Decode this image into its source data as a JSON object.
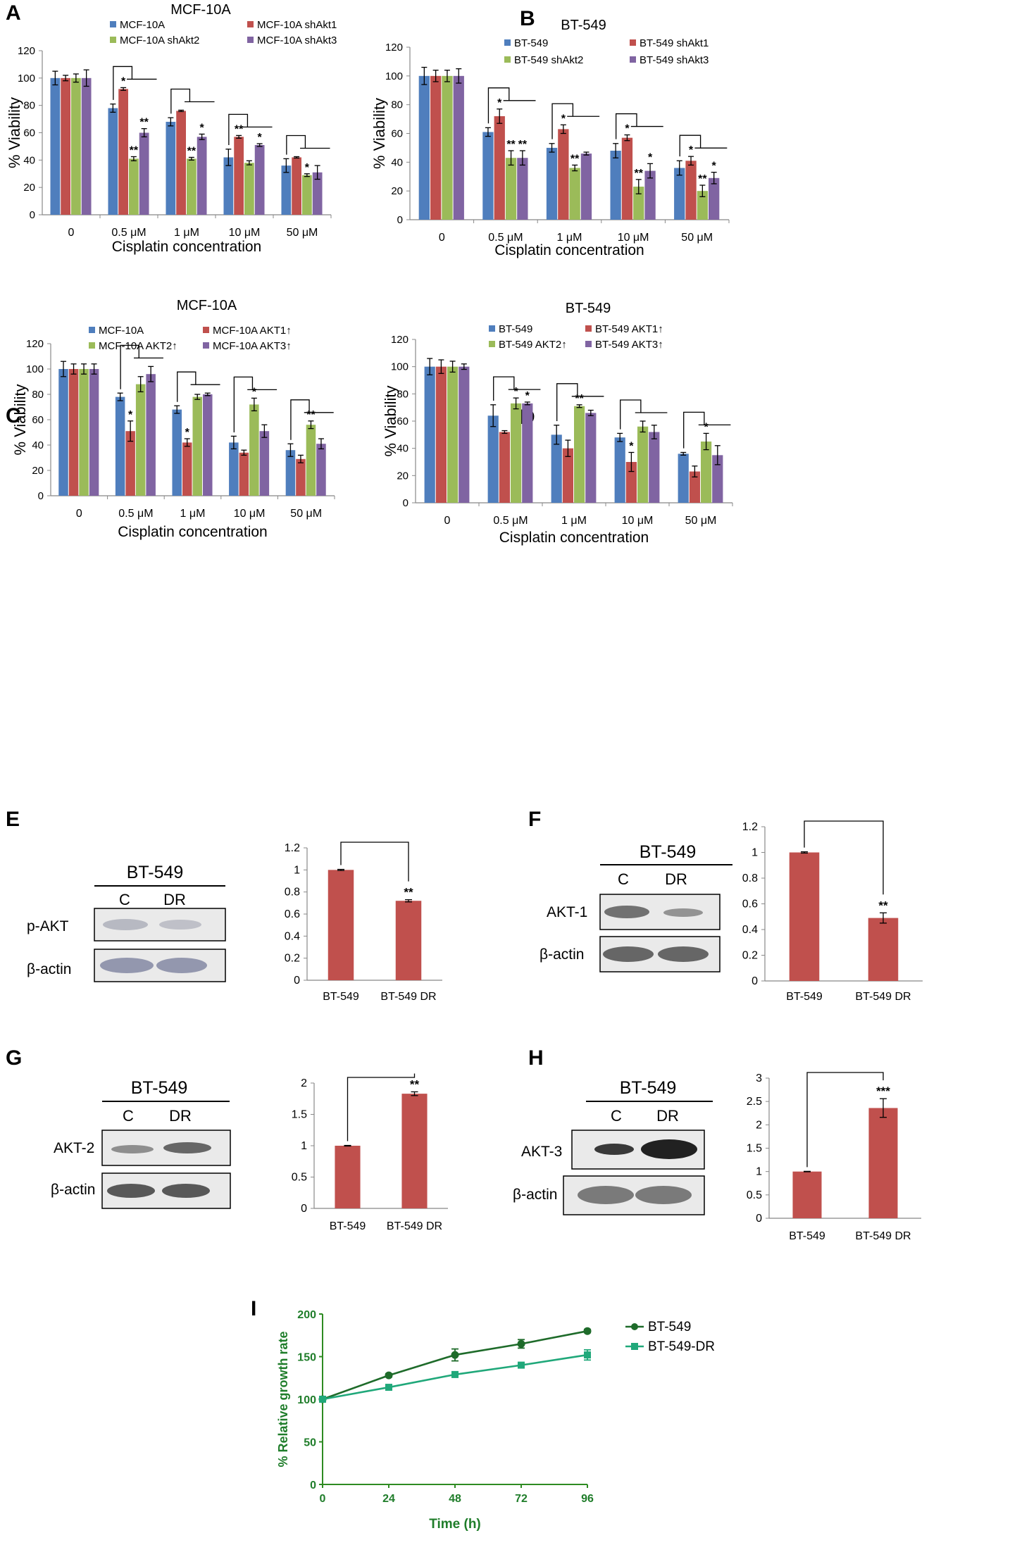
{
  "colors": {
    "blue": "#4f7ebd",
    "red": "#c0504d",
    "green": "#9bbb59",
    "purple": "#8064a2",
    "bt549_line": "#1e6b2a",
    "bt549dr_line": "#20a87a",
    "axis_green": "#2e8b22"
  },
  "panels": [
    {
      "id": "A",
      "letter": "A"
    },
    {
      "id": "B",
      "letter": "B"
    },
    {
      "id": "C",
      "letter": "C"
    },
    {
      "id": "D",
      "letter": "D"
    },
    {
      "id": "E",
      "letter": "E"
    },
    {
      "id": "F",
      "letter": "F"
    },
    {
      "id": "G",
      "letter": "G"
    },
    {
      "id": "H",
      "letter": "H"
    },
    {
      "id": "I",
      "letter": "I"
    }
  ],
  "blots": {
    "E": {
      "title": "BT-549",
      "lanes": [
        "C",
        "DR"
      ],
      "rows": [
        "p-AKT",
        "β-actin"
      ]
    },
    "F": {
      "title": "BT-549",
      "lanes": [
        "C",
        "DR"
      ],
      "rows": [
        "AKT-1",
        "β-actin"
      ]
    },
    "G": {
      "title": "BT-549",
      "lanes": [
        "C",
        "DR"
      ],
      "rows": [
        "AKT-2",
        "β-actin"
      ]
    },
    "H": {
      "title": "BT-549",
      "lanes": [
        "C",
        "DR"
      ],
      "rows": [
        "AKT-3",
        "β-actin"
      ]
    }
  },
  "chart_data": [
    {
      "panel": "A",
      "type": "bar",
      "title": "MCF-10A",
      "categories": [
        "0",
        "0.5 μM",
        "1 μM",
        "10 μM",
        "50 μM"
      ],
      "xlabel": "Cisplatin concentration",
      "ylabel": "% Viability",
      "ylim": [
        0,
        120
      ],
      "yticks": [
        0,
        20,
        40,
        60,
        80,
        100,
        120
      ],
      "legend": "top",
      "series": [
        {
          "name": "MCF-10A",
          "color": "#4f7ebd",
          "values": [
            100,
            78,
            68,
            42,
            36
          ],
          "errors": [
            5,
            3,
            3,
            6,
            5
          ],
          "stars": [
            "",
            "",
            "",
            "",
            ""
          ]
        },
        {
          "name": "MCF-10A shAkt1",
          "color": "#c0504d",
          "values": [
            100,
            92,
            76,
            57,
            42
          ],
          "errors": [
            2,
            1,
            0.5,
            1,
            0.5
          ],
          "stars": [
            "",
            "*",
            "",
            "**",
            ""
          ]
        },
        {
          "name": "MCF-10A shAkt2",
          "color": "#9bbb59",
          "values": [
            100,
            41,
            41,
            38,
            29
          ],
          "errors": [
            3,
            1.5,
            1,
            1.5,
            1
          ],
          "stars": [
            "",
            "**",
            "**",
            "",
            "*"
          ]
        },
        {
          "name": "MCF-10A shAkt3",
          "color": "#8064a2",
          "values": [
            100,
            60,
            57,
            51,
            31
          ],
          "errors": [
            6,
            3,
            2,
            1,
            5
          ],
          "stars": [
            "",
            "**",
            "*",
            "*",
            ""
          ]
        }
      ]
    },
    {
      "panel": "B",
      "type": "bar",
      "title": "BT-549",
      "categories": [
        "0",
        "0.5 μM",
        "1 μM",
        "10 μM",
        "50 μM"
      ],
      "xlabel": "Cisplatin concentration",
      "ylabel": "% Viability",
      "ylim": [
        0,
        120
      ],
      "yticks": [
        0,
        20,
        40,
        60,
        80,
        100,
        120
      ],
      "legend": "top",
      "series": [
        {
          "name": "BT-549",
          "color": "#4f7ebd",
          "values": [
            100,
            61,
            50,
            48,
            36
          ],
          "errors": [
            6,
            3,
            3,
            5,
            5
          ],
          "stars": [
            "",
            "",
            "",
            "",
            ""
          ]
        },
        {
          "name": "BT-549 shAkt1",
          "color": "#c0504d",
          "values": [
            100,
            72,
            63,
            57,
            41
          ],
          "errors": [
            4,
            5,
            3,
            2,
            3
          ],
          "stars": [
            "",
            "*",
            "*",
            "*",
            "*"
          ]
        },
        {
          "name": "BT-549 shAkt2",
          "color": "#9bbb59",
          "values": [
            100,
            43,
            36,
            23,
            20
          ],
          "errors": [
            4,
            5,
            2,
            5,
            4
          ],
          "stars": [
            "",
            "**",
            "**",
            "**",
            "**"
          ]
        },
        {
          "name": "BT-549 shAkt3",
          "color": "#8064a2",
          "values": [
            100,
            43,
            46,
            34,
            29
          ],
          "errors": [
            5,
            5,
            1,
            5,
            4
          ],
          "stars": [
            "",
            "**",
            "",
            "*",
            "*"
          ]
        }
      ]
    },
    {
      "panel": "C",
      "type": "bar",
      "title": "MCF-10A",
      "categories": [
        "0",
        "0.5 μM",
        "1 μM",
        "10 μM",
        "50 μM"
      ],
      "xlabel": "Cisplatin concentration",
      "ylabel": "% Viability",
      "ylim": [
        0,
        120
      ],
      "yticks": [
        0,
        20,
        40,
        60,
        80,
        100,
        120
      ],
      "legend": "top",
      "series": [
        {
          "name": "MCF-10A",
          "color": "#4f7ebd",
          "values": [
            100,
            78,
            68,
            42,
            36
          ],
          "errors": [
            6,
            3,
            3,
            5,
            5
          ],
          "stars": [
            "",
            "",
            "",
            "",
            ""
          ]
        },
        {
          "name": "MCF-10A AKT1↑",
          "color": "#c0504d",
          "values": [
            100,
            51,
            42,
            34,
            29
          ],
          "errors": [
            4,
            8,
            3,
            2,
            3
          ],
          "stars": [
            "",
            "*",
            "*",
            "",
            ""
          ]
        },
        {
          "name": "MCF-10A AKT2↑",
          "color": "#9bbb59",
          "values": [
            100,
            88,
            78,
            72,
            56
          ],
          "errors": [
            4,
            6,
            2,
            5,
            3
          ],
          "stars": [
            "",
            "",
            "",
            "*",
            "**"
          ]
        },
        {
          "name": "MCF-10A AKT3↑",
          "color": "#8064a2",
          "values": [
            100,
            96,
            80,
            51,
            41
          ],
          "errors": [
            4,
            6,
            1,
            5,
            4
          ],
          "stars": [
            "",
            "",
            "",
            "",
            ""
          ]
        }
      ]
    },
    {
      "panel": "D",
      "type": "bar",
      "title": "BT-549",
      "categories": [
        "0",
        "0.5 μM",
        "1 μM",
        "10 μM",
        "50 μM"
      ],
      "xlabel": "Cisplatin concentration",
      "ylabel": "% Viability",
      "ylim": [
        0,
        120
      ],
      "yticks": [
        0,
        20,
        40,
        60,
        80,
        100,
        120
      ],
      "legend": "top",
      "series": [
        {
          "name": "BT-549",
          "color": "#4f7ebd",
          "values": [
            100,
            64,
            50,
            48,
            36
          ],
          "errors": [
            6,
            8,
            7,
            3,
            1
          ],
          "stars": [
            "",
            "",
            "",
            "",
            ""
          ]
        },
        {
          "name": "BT-549 AKT1↑",
          "color": "#c0504d",
          "values": [
            100,
            52,
            40,
            30,
            23
          ],
          "errors": [
            5,
            1,
            6,
            7,
            4
          ],
          "stars": [
            "",
            "",
            "",
            "*",
            ""
          ]
        },
        {
          "name": "BT-549 AKT2↑",
          "color": "#9bbb59",
          "values": [
            100,
            73,
            71,
            56,
            45
          ],
          "errors": [
            4,
            4,
            1,
            4,
            6
          ],
          "stars": [
            "",
            "*",
            "**",
            "",
            "*"
          ]
        },
        {
          "name": "BT-549 AKT3↑",
          "color": "#8064a2",
          "values": [
            100,
            73,
            66,
            52,
            35
          ],
          "errors": [
            2,
            1,
            2,
            5,
            7
          ],
          "stars": [
            "",
            "*",
            "",
            "",
            ""
          ]
        }
      ]
    },
    {
      "panel": "E",
      "type": "bar",
      "categories": [
        "BT-549",
        "BT-549 DR"
      ],
      "values": [
        1,
        0.72
      ],
      "errors": [
        0.005,
        0.01
      ],
      "stars": [
        "",
        "**"
      ],
      "ylim": [
        0,
        1.2
      ],
      "yticks": [
        0,
        0.2,
        0.4,
        0.6,
        0.8,
        1,
        1.2
      ],
      "ytick_labels": [
        "0",
        "0.2",
        "0.4",
        "0.6",
        "0.8",
        "1",
        "1.2"
      ],
      "color": "#c0504d"
    },
    {
      "panel": "F",
      "type": "bar",
      "categories": [
        "BT-549",
        "BT-549 DR"
      ],
      "values": [
        1,
        0.49
      ],
      "errors": [
        0.005,
        0.04
      ],
      "stars": [
        "",
        "**"
      ],
      "ylim": [
        0,
        1.2
      ],
      "yticks": [
        0,
        0.2,
        0.4,
        0.6,
        0.8,
        1,
        1.2
      ],
      "ytick_labels": [
        "0",
        "0.2",
        "0.4",
        "0.6",
        "0.8",
        "1",
        "1.2"
      ],
      "color": "#c0504d"
    },
    {
      "panel": "G",
      "type": "bar",
      "categories": [
        "BT-549",
        "BT-549 DR"
      ],
      "values": [
        1,
        1.83
      ],
      "errors": [
        0.005,
        0.03
      ],
      "stars": [
        "",
        "**"
      ],
      "ylim": [
        0,
        2
      ],
      "yticks": [
        0,
        0.5,
        1,
        1.5,
        2
      ],
      "ytick_labels": [
        "0",
        "0.5",
        "1",
        "1.5",
        "2"
      ],
      "color": "#c0504d"
    },
    {
      "panel": "H",
      "type": "bar",
      "categories": [
        "BT-549",
        "BT-549 DR"
      ],
      "values": [
        1,
        2.36
      ],
      "errors": [
        0.005,
        0.2
      ],
      "stars": [
        "",
        "***"
      ],
      "ylim": [
        0,
        3
      ],
      "yticks": [
        0,
        0.5,
        1,
        1.5,
        2,
        2.5,
        3
      ],
      "ytick_labels": [
        "0",
        "0.5",
        "1",
        "1.5",
        "2",
        "2.5",
        "3"
      ],
      "color": "#c0504d"
    },
    {
      "panel": "I",
      "type": "line",
      "x": [
        0,
        24,
        48,
        72,
        96
      ],
      "xlabel": "Time (h)",
      "ylabel": "% Relative growth rate",
      "xlim": [
        0,
        96
      ],
      "ylim": [
        0,
        200
      ],
      "xticks": [
        0,
        24,
        48,
        72,
        96
      ],
      "yticks": [
        0,
        50,
        100,
        150,
        200
      ],
      "legend": "right",
      "series": [
        {
          "name": "BT-549",
          "color": "#1e6b2a",
          "marker": "circle",
          "values": [
            100,
            128,
            152,
            165,
            180
          ],
          "errors": [
            0,
            2,
            7,
            5,
            2
          ]
        },
        {
          "name": "BT-549-DR",
          "color": "#20a87a",
          "marker": "square",
          "values": [
            100,
            114,
            129,
            140,
            152
          ],
          "errors": [
            0,
            2,
            2,
            2,
            6
          ]
        }
      ]
    }
  ]
}
